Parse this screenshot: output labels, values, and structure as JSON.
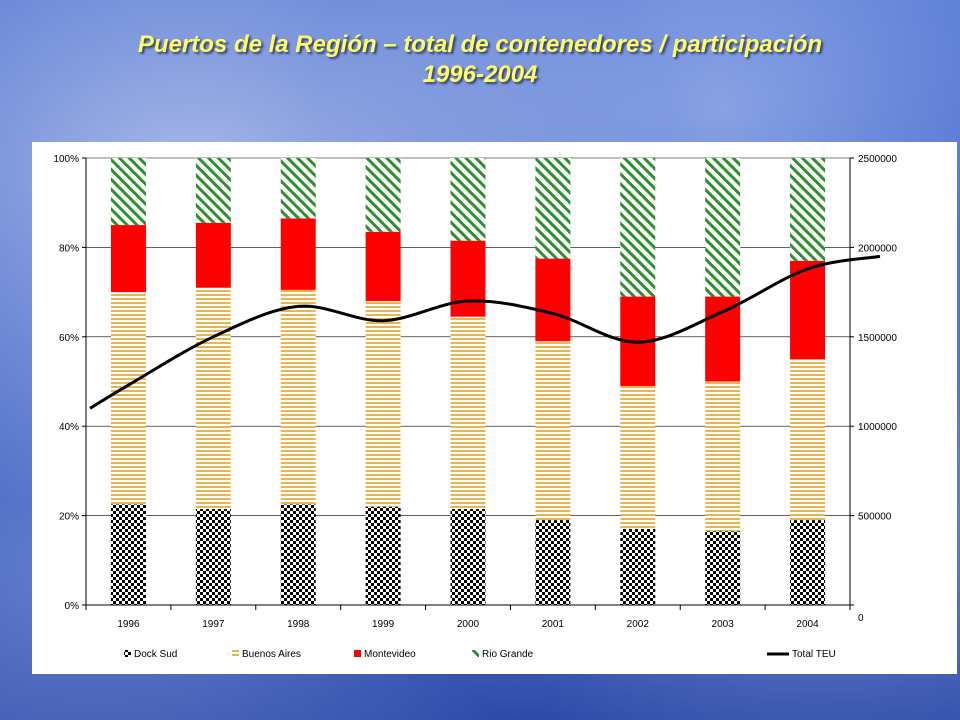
{
  "title": {
    "line1": "Puertos de la Región – total de contenedores / participación",
    "line2": "1996-2004"
  },
  "colors": {
    "title": "#ffff66",
    "dock_sud": "#000000",
    "buenos_aires": "#e8b64c",
    "montevideo": "#ff0000",
    "rio_grande": "#2f8f2f",
    "total_teu": "#000000"
  },
  "chart_data": {
    "type": "bar",
    "stacked": true,
    "categories": [
      "1996",
      "1997",
      "1998",
      "1999",
      "2000",
      "2001",
      "2002",
      "2003",
      "2004"
    ],
    "series": [
      {
        "name": "Dock Sud",
        "values": [
          22.5,
          21.5,
          22.5,
          22,
          21.5,
          19,
          17,
          16.5,
          19
        ]
      },
      {
        "name": "Buenos Aires",
        "values": [
          47.5,
          49.5,
          48,
          46,
          43,
          40,
          32,
          33.5,
          36
        ]
      },
      {
        "name": "Montevideo",
        "values": [
          15,
          14.5,
          16,
          15.5,
          17,
          18.5,
          20,
          19,
          22
        ]
      },
      {
        "name": "Rio Grande",
        "values": [
          15,
          14.5,
          13.5,
          16.5,
          18.5,
          22.5,
          31,
          31,
          23
        ]
      }
    ],
    "line_series": {
      "name": "Total TEU",
      "x": [
        "1996",
        "1997",
        "1998",
        "1999",
        "2000",
        "2001",
        "2002",
        "2003",
        "2004"
      ],
      "values": [
        1230000,
        1500000,
        1670000,
        1590000,
        1700000,
        1630000,
        1470000,
        1640000,
        1880000
      ],
      "start_value": 1100000,
      "end_value": 1950000
    },
    "y_left": {
      "ticks": [
        "0%",
        "20%",
        "40%",
        "60%",
        "80%",
        "100%"
      ],
      "range": [
        0,
        100
      ]
    },
    "y_right": {
      "ticks": [
        "0",
        "500000",
        "1000000",
        "1500000",
        "2000000",
        "2500000"
      ],
      "range": [
        0,
        2500000
      ]
    },
    "legend_position": "bottom",
    "grid": true
  }
}
